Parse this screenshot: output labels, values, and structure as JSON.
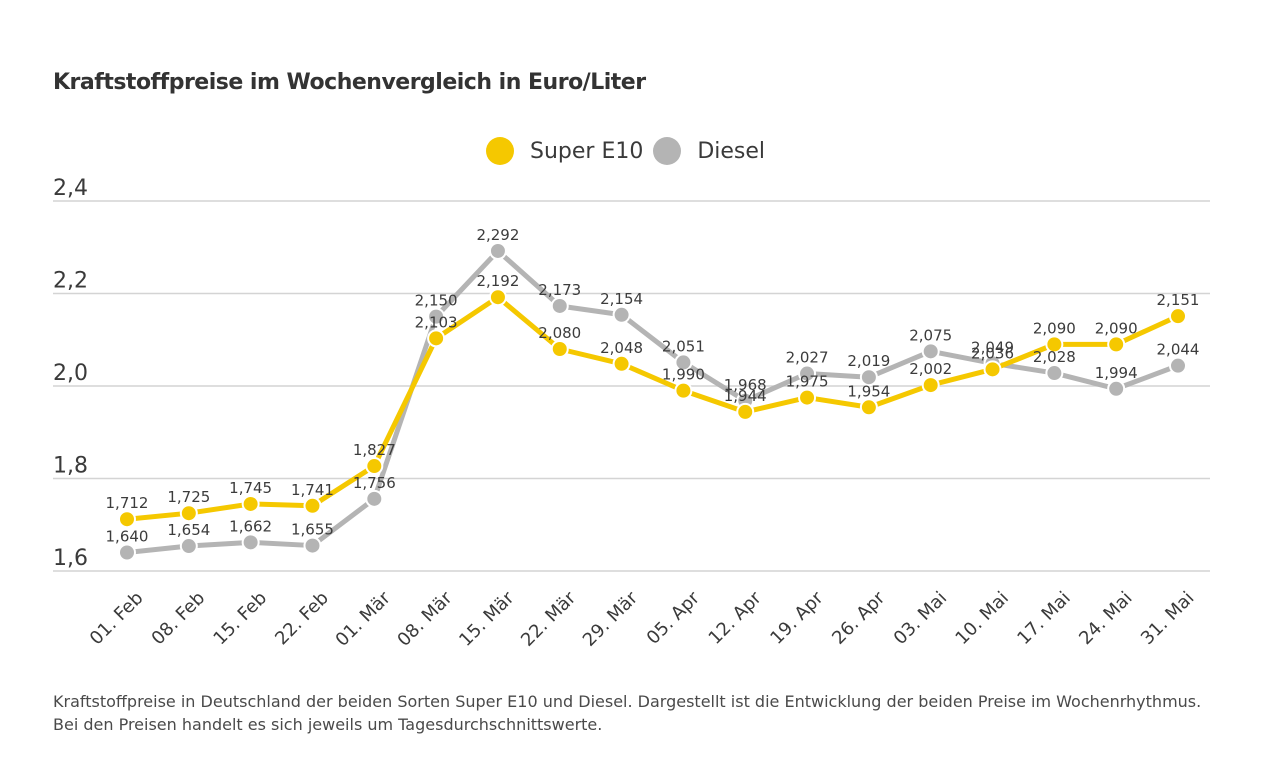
{
  "chart_data": {
    "type": "line",
    "title": "Kraftstoffpreise im Wochenvergleich in Euro/Liter",
    "xlabel": "",
    "ylabel": "",
    "ylim": [
      1.6,
      2.4
    ],
    "yticks": [
      1.6,
      1.8,
      2.0,
      2.2,
      2.4
    ],
    "ytick_labels": [
      "1,6",
      "1,8",
      "2,0",
      "2,2",
      "2,4"
    ],
    "grid": true,
    "legend_position": "top-center",
    "categories": [
      "01. Feb",
      "08. Feb",
      "15. Feb",
      "22. Feb",
      "01. Mär",
      "08. Mär",
      "15. Mär",
      "22. Mär",
      "29. Mär",
      "05. Apr",
      "12. Apr",
      "19. Apr",
      "26. Apr",
      "03. Mai",
      "10. Mai",
      "17. Mai",
      "24. Mai",
      "31. Mai"
    ],
    "series": [
      {
        "name": "Diesel",
        "color": "#b4b4b4",
        "values": [
          1.64,
          1.654,
          1.662,
          1.655,
          1.756,
          2.15,
          2.292,
          2.173,
          2.154,
          2.051,
          1.968,
          2.027,
          2.019,
          2.075,
          2.049,
          2.028,
          1.994,
          2.044
        ],
        "labels": [
          "1,640",
          "1,654",
          "1,662",
          "1,655",
          "1,756",
          "2,150",
          "2,292",
          "2,173",
          "2,154",
          "2,051",
          "1,968",
          "2,027",
          "2,019",
          "2,075",
          "2,049",
          "2,028",
          "1,994",
          "2,044"
        ]
      },
      {
        "name": "Super E10",
        "color": "#f5c800",
        "values": [
          1.712,
          1.725,
          1.745,
          1.741,
          1.827,
          2.103,
          2.192,
          2.08,
          2.048,
          1.99,
          1.944,
          1.975,
          1.954,
          2.002,
          2.036,
          2.09,
          2.09,
          2.151
        ],
        "labels": [
          "1,712",
          "1,725",
          "1,745",
          "1,741",
          "1,827",
          "2,103",
          "2,192",
          "2,080",
          "2,048",
          "1,990",
          "1,944",
          "1,975",
          "1,954",
          "2,002",
          "2,036",
          "2,090",
          "2,090",
          "2,151"
        ]
      }
    ]
  },
  "legend": [
    {
      "label": "Super E10",
      "color": "#f5c800"
    },
    {
      "label": "Diesel",
      "color": "#b4b4b4"
    }
  ],
  "footnote": "Kraftstoffpreise in Deutschland der beiden Sorten Super E10 und Diesel. Dargestellt ist die Entwicklung der beiden Preise im Wochenrhythmus. Bei den Preisen handelt es sich jeweils um Tagesdurchschnittswerte."
}
